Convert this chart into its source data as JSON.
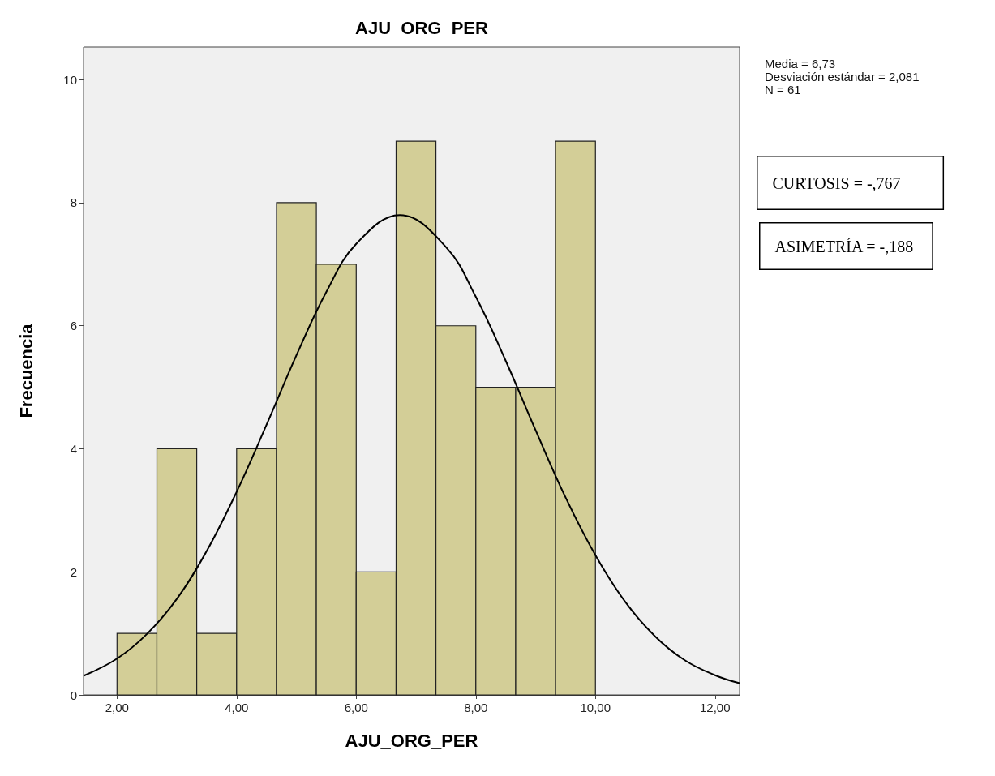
{
  "chart_data": {
    "type": "histogram",
    "title": "AJU_ORG_PER",
    "xlabel": "AJU_ORG_PER",
    "ylabel": "Frecuencia",
    "bins": [
      2,
      2.667,
      3.333,
      4,
      4.667,
      5.333,
      6,
      6.667,
      7.333,
      8,
      8.667,
      9.333,
      10
    ],
    "values": [
      1,
      4,
      1,
      4,
      8,
      7,
      2,
      9,
      6,
      5,
      5,
      9
    ],
    "color": "#d3ce97",
    "series": [
      {
        "type": "line",
        "color": "#000000",
        "x": [
          1.44,
          2,
          2.5,
          3,
          3.5,
          4,
          4.5,
          5,
          5.5,
          6,
          6.73,
          7.5,
          8,
          8.5,
          9,
          9.5,
          10,
          10.5,
          11,
          11.5,
          12,
          12.41
        ],
        "values": [
          0.31,
          0.59,
          0.99,
          1.56,
          2.34,
          3.3,
          4.39,
          5.52,
          6.55,
          7.33,
          7.8,
          7.28,
          6.47,
          5.43,
          4.3,
          3.21,
          2.27,
          1.51,
          0.95,
          0.56,
          0.32,
          0.19
        ]
      }
    ],
    "xlim": [
      1.44,
      12.41
    ],
    "ylim": [
      0,
      10.53
    ],
    "xticks": [
      {
        "value": 2,
        "label": "2,00"
      },
      {
        "value": 4,
        "label": "4,00"
      },
      {
        "value": 6,
        "label": "6,00"
      },
      {
        "value": 8,
        "label": "8,00"
      },
      {
        "value": 10,
        "label": "10,00"
      },
      {
        "value": 12,
        "label": "12,00"
      }
    ],
    "yticks": [
      0,
      2,
      4,
      6,
      8,
      10
    ],
    "grid": false,
    "marker": "none",
    "line_style": "solid",
    "annotations": [
      "Media = 6,73\nDesviación estándar = 2,081\nN = 61",
      "CURTOSIS = -,767",
      "ASIMETRÍA = -,188"
    ]
  }
}
